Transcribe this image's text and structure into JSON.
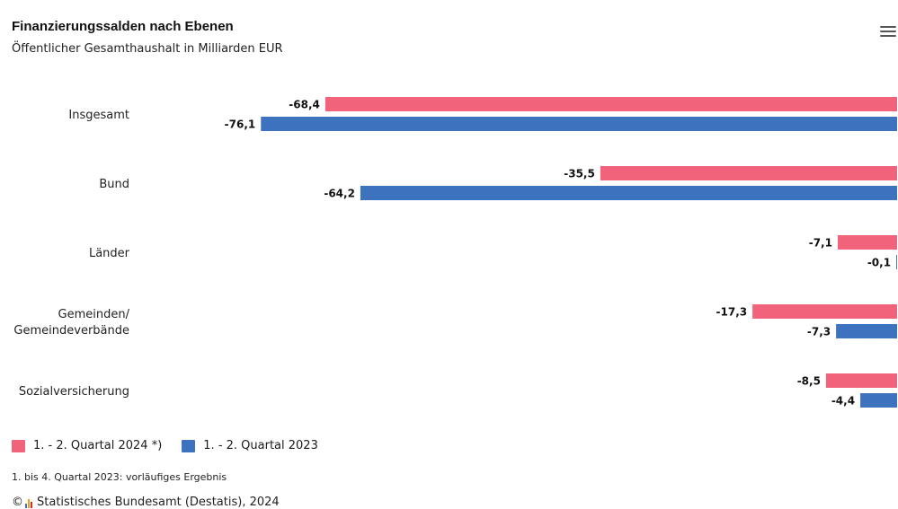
{
  "chart_data": {
    "type": "bar",
    "orientation": "horizontal",
    "title": "Finanzierungssalden nach Ebenen",
    "subtitle": "Öffentlicher Gesamthaushalt in Milliarden EUR",
    "categories": [
      [
        "Insgesamt"
      ],
      [
        "Bund"
      ],
      [
        "Länder"
      ],
      [
        "Gemeinden/",
        "Gemeindeverbände"
      ],
      [
        "Sozialversicherung"
      ]
    ],
    "series": [
      {
        "name": "1. - 2. Quartal 2024 *)",
        "color": "#f0637b",
        "values": [
          -68.4,
          -35.5,
          -7.1,
          -17.3,
          -8.5
        ],
        "labels": [
          "-68,4",
          "-35,5",
          "-7,1",
          "-17,3",
          "-8,5"
        ]
      },
      {
        "name": "1. - 2. Quartal 2023",
        "color": "#3d73be",
        "values": [
          -76.1,
          -64.2,
          -0.1,
          -7.3,
          -4.4
        ],
        "labels": [
          "-76,1",
          "-64,2",
          "-0,1",
          "-7,3",
          "-4,4"
        ]
      }
    ],
    "legend": "bottom-left",
    "grid": false
  },
  "footnote": "1. bis 4. Quartal 2023: vorläufiges Ergebnis",
  "source": "Statistisches Bundesamt (Destatis), 2024",
  "copyright_symbol": "©",
  "menu_icon": "hamburger-menu-icon"
}
